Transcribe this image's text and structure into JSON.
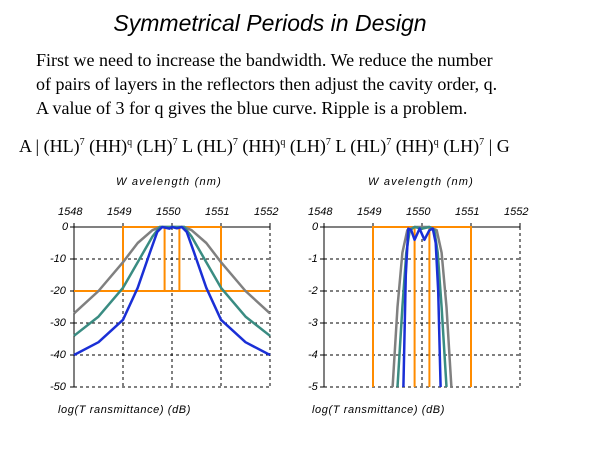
{
  "slide": {
    "title": "Symmetrical Periods in Design",
    "paragraph_lines": [
      "First we need to increase the bandwidth. We reduce the number",
      "of pairs of layers in the reflectors then adjust the cavity order, q.",
      "A value of 3 for q gives the blue curve. Ripple is a problem."
    ],
    "formula": {
      "a": "A | (HL)",
      "e1": "7",
      "b": " (HH)",
      "q1": "q",
      "c": " (LH)",
      "e2": "7",
      "d": " L (HL)",
      "e3": "7",
      "e": " (HH)",
      "q2": "q",
      "f": " (LH)",
      "e4": "7",
      "g": " L (HL)",
      "e5": "7",
      "h": " (HH)",
      "q3": "q",
      "i": " (LH)",
      "e6": "7",
      "j": " | G"
    }
  },
  "chart_data": [
    {
      "type": "line",
      "xlabel": "W avelength (nm)",
      "ylabel": "log(T ransmittance) (dB)",
      "x_ticks": [
        "1548",
        "1549",
        "1550",
        "1551",
        "1552"
      ],
      "y_ticks": [
        "0",
        "-10",
        "-20",
        "-30",
        "-40",
        "-50"
      ],
      "xlim": [
        1548,
        1552
      ],
      "ylim": [
        -50,
        0
      ],
      "grid": true,
      "series": [
        {
          "color": "#808080",
          "x": [
            1548,
            1548.5,
            1549,
            1549.3,
            1549.6,
            1549.75,
            1550,
            1550.25,
            1550.4,
            1550.7,
            1551,
            1551.5,
            1552
          ],
          "y": [
            -27,
            -20,
            -11,
            -5,
            -1,
            0,
            0,
            0,
            -1,
            -5,
            -11,
            -20,
            -27
          ]
        },
        {
          "color": "#3a8c82",
          "x": [
            1548,
            1548.5,
            1549,
            1549.3,
            1549.6,
            1549.75,
            1550,
            1550.25,
            1550.4,
            1550.7,
            1551,
            1551.5,
            1552
          ],
          "y": [
            -34,
            -28,
            -19,
            -11,
            -3,
            0,
            0,
            0,
            -3,
            -11,
            -19,
            -28,
            -34
          ]
        },
        {
          "color": "#1a2fd6",
          "x": [
            1548,
            1548.5,
            1549,
            1549.3,
            1549.55,
            1549.7,
            1549.8,
            1549.95,
            1550,
            1550.1,
            1550.2,
            1550.3,
            1550.45,
            1550.7,
            1551,
            1551.5,
            1552
          ],
          "y": [
            -40,
            -36,
            -29,
            -19,
            -8,
            -1.5,
            0,
            -0.5,
            0,
            -0.4,
            0,
            -1.5,
            -8,
            -19,
            -29,
            -36,
            -40
          ]
        }
      ],
      "mask": {
        "color": "#ff8c00",
        "x": [
          1548,
          1549,
          1549,
          1549.85,
          1549.85,
          1549,
          1549,
          1549.85,
          1549.85,
          1550.15,
          1550.15,
          1551,
          1551,
          1550.15,
          1550.15,
          1551,
          1551,
          1552
        ],
        "y": [
          -20,
          -20,
          0,
          0,
          -20,
          -20,
          0,
          0,
          -20,
          -20,
          0,
          0,
          -20,
          -20,
          0,
          0,
          -20,
          -20
        ]
      }
    },
    {
      "type": "line",
      "xlabel": "W avelength (nm)",
      "ylabel": "log(T ransmittance) (dB)",
      "x_ticks": [
        "1548",
        "1549",
        "1550",
        "1551",
        "1552"
      ],
      "y_ticks": [
        "0",
        "-1",
        "-2",
        "-3",
        "-4",
        "-5"
      ],
      "xlim": [
        1548,
        1552
      ],
      "ylim": [
        -5,
        0
      ],
      "grid": true,
      "series": [
        {
          "color": "#808080",
          "x": [
            1549.4,
            1549.5,
            1549.6,
            1549.7,
            1549.85,
            1550,
            1550.15,
            1550.3,
            1550.4,
            1550.5,
            1550.6
          ],
          "y": [
            -5,
            -2.5,
            -0.8,
            -0.1,
            0,
            0,
            0,
            -0.1,
            -0.8,
            -2.5,
            -5
          ]
        },
        {
          "color": "#3a8c82",
          "x": [
            1549.5,
            1549.6,
            1549.68,
            1549.75,
            1549.85,
            1550,
            1550.15,
            1550.25,
            1550.32,
            1550.4,
            1550.5
          ],
          "y": [
            -5,
            -2.5,
            -0.8,
            -0.1,
            0,
            -0.05,
            0,
            -0.1,
            -0.8,
            -2.5,
            -5
          ]
        },
        {
          "color": "#1a2fd6",
          "x": [
            1549.62,
            1549.67,
            1549.72,
            1549.78,
            1549.85,
            1549.95,
            1550.05,
            1550.15,
            1550.22,
            1550.28,
            1550.33,
            1550.38
          ],
          "y": [
            -5,
            -1.5,
            -0.05,
            -0.1,
            -0.4,
            -0.05,
            -0.4,
            -0.1,
            -0.05,
            -0.5,
            -2,
            -5
          ]
        }
      ],
      "mask": {
        "color": "#ff8c00",
        "x": [
          1549,
          1549,
          1549,
          1549.85,
          1549.85,
          1549.85,
          1550.15,
          1550.15,
          1550.15,
          1551,
          1551
        ],
        "y": [
          -5,
          0,
          0,
          0,
          -5,
          0,
          0,
          -5,
          0,
          0,
          -5
        ]
      }
    }
  ]
}
